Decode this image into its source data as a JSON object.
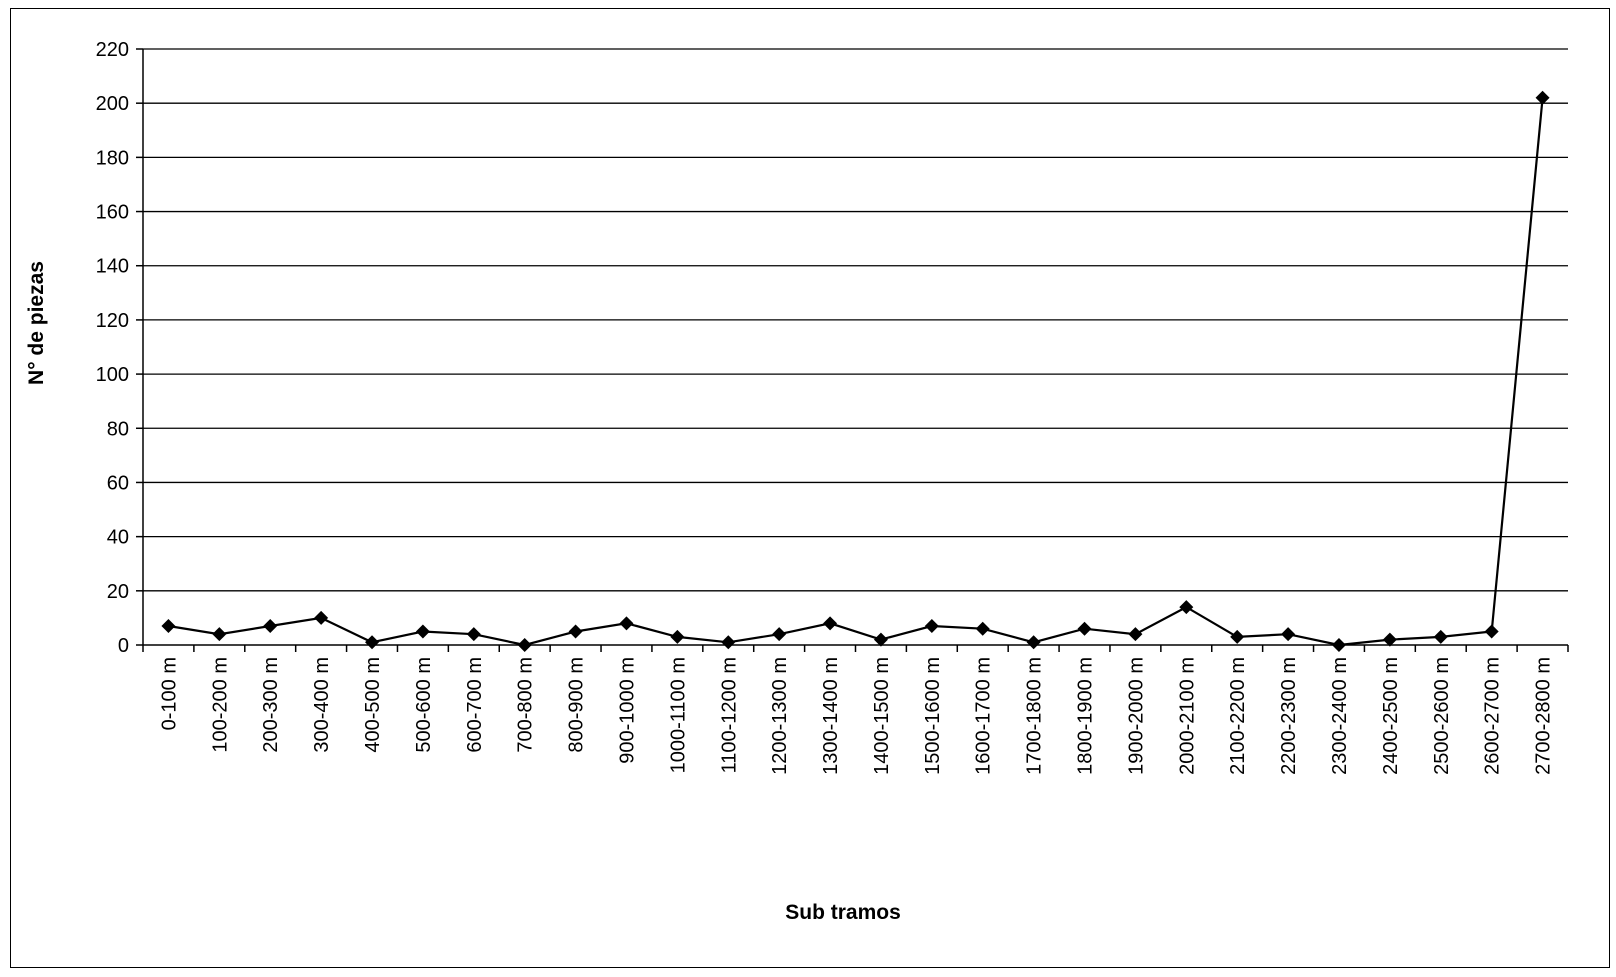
{
  "chart_data": {
    "type": "line",
    "title": "",
    "xlabel": "Sub tramos",
    "ylabel": "N° de piezas",
    "ylim": [
      0,
      220
    ],
    "yticks": [
      0,
      20,
      40,
      60,
      80,
      100,
      120,
      140,
      160,
      180,
      200,
      220
    ],
    "grid": true,
    "legend": "none",
    "categories": [
      "0-100 m",
      "100-200 m",
      "200-300 m",
      "300-400 m",
      "400-500 m",
      "500-600 m",
      "600-700 m",
      "700-800 m",
      "800-900 m",
      "900-1000 m",
      "1000-1100 m",
      "1100-1200 m",
      "1200-1300 m",
      "1300-1400 m",
      "1400-1500 m",
      "1500-1600 m",
      "1600-1700 m",
      "1700-1800 m",
      "1800-1900 m",
      "1900-2000 m",
      "2000-2100 m",
      "2100-2200 m",
      "2200-2300 m",
      "2300-2400 m",
      "2400-2500 m",
      "2500-2600 m",
      "2600-2700 m",
      "2700-2800 m"
    ],
    "series": [
      {
        "values": [
          7,
          4,
          7,
          10,
          1,
          5,
          4,
          0,
          5,
          8,
          3,
          1,
          4,
          8,
          2,
          7,
          6,
          1,
          6,
          4,
          14,
          3,
          4,
          0,
          2,
          3,
          5,
          202
        ]
      }
    ],
    "line_color": "#000000"
  }
}
